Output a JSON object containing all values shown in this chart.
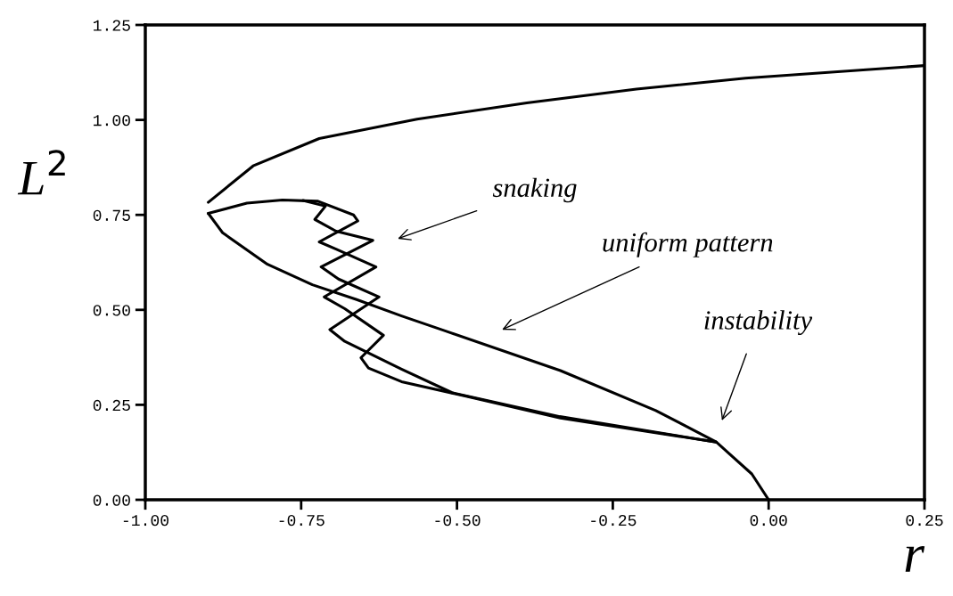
{
  "chart_data": {
    "type": "line",
    "xlabel": "r",
    "ylabel": "L$^{2}$",
    "xlim": [
      -1.0,
      0.25
    ],
    "ylim": [
      0.0,
      1.25
    ],
    "xticks": [
      {
        "value": -1.0,
        "label": "-1.00"
      },
      {
        "value": -0.75,
        "label": "-0.75"
      },
      {
        "value": -0.5,
        "label": "-0.50"
      },
      {
        "value": -0.25,
        "label": "-0.25"
      },
      {
        "value": 0.0,
        "label": "0.00"
      },
      {
        "value": 0.25,
        "label": "0.25"
      }
    ],
    "yticks": [
      {
        "value": 0.0,
        "label": "0.00"
      },
      {
        "value": 0.25,
        "label": "0.25"
      },
      {
        "value": 0.5,
        "label": "0.50"
      },
      {
        "value": 0.75,
        "label": "0.75"
      },
      {
        "value": 1.0,
        "label": "1.00"
      },
      {
        "value": 1.25,
        "label": "1.25"
      }
    ],
    "marker": "none",
    "line_style": "solid",
    "series": [
      {
        "color": "#000000",
        "x": [
          -0.899,
          -0.827,
          -0.721,
          -0.564,
          -0.388,
          -0.212,
          -0.037,
          0.25
        ],
        "values": [
          0.783,
          0.879,
          0.951,
          1.002,
          1.045,
          1.081,
          1.11,
          1.143
        ]
      },
      {
        "color": "#000000",
        "x": [
          -0.899,
          -0.876,
          -0.804,
          -0.732,
          -0.661,
          -0.589,
          -0.518,
          -0.334,
          -0.181,
          -0.084,
          -0.027,
          0.0
        ],
        "values": [
          0.754,
          0.703,
          0.62,
          0.566,
          0.527,
          0.484,
          0.444,
          0.34,
          0.235,
          0.152,
          0.068,
          0.0
        ]
      },
      {
        "color": "#000000",
        "x": [
          -0.899,
          -0.837,
          -0.78,
          -0.723,
          -0.666,
          -0.659,
          -0.721,
          -0.694,
          -0.63,
          -0.713,
          -0.68,
          -0.618,
          -0.654,
          -0.642,
          -0.589,
          -0.487,
          -0.334,
          -0.084
        ],
        "values": [
          0.754,
          0.781,
          0.789,
          0.786,
          0.75,
          0.734,
          0.679,
          0.66,
          0.613,
          0.534,
          0.503,
          0.433,
          0.374,
          0.347,
          0.311,
          0.273,
          0.215,
          0.152
        ]
      },
      {
        "color": "#000000",
        "x": [
          -0.747,
          -0.711,
          -0.728,
          -0.694,
          -0.635,
          -0.718,
          -0.69,
          -0.625,
          -0.704,
          -0.68,
          -0.589,
          -0.508,
          -0.335,
          -0.084
        ],
        "values": [
          0.788,
          0.773,
          0.738,
          0.707,
          0.683,
          0.613,
          0.581,
          0.534,
          0.448,
          0.417,
          0.344,
          0.282,
          0.219,
          0.152
        ]
      }
    ],
    "annotations": [
      "snaking",
      "uniform pattern",
      "instability"
    ]
  }
}
